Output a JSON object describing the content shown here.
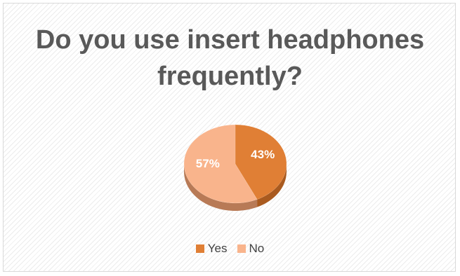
{
  "chart_data": {
    "type": "pie",
    "title": "Do you use insert headphones frequently?",
    "categories": [
      "Yes",
      "No"
    ],
    "values": [
      43,
      57
    ],
    "data_labels": [
      "43%",
      "57%"
    ],
    "colors": [
      "#e07f35",
      "#f9b48c"
    ],
    "shadow_colors": [
      "#a95a1f",
      "#b87a56"
    ],
    "style": "3d",
    "legend_position": "bottom"
  }
}
